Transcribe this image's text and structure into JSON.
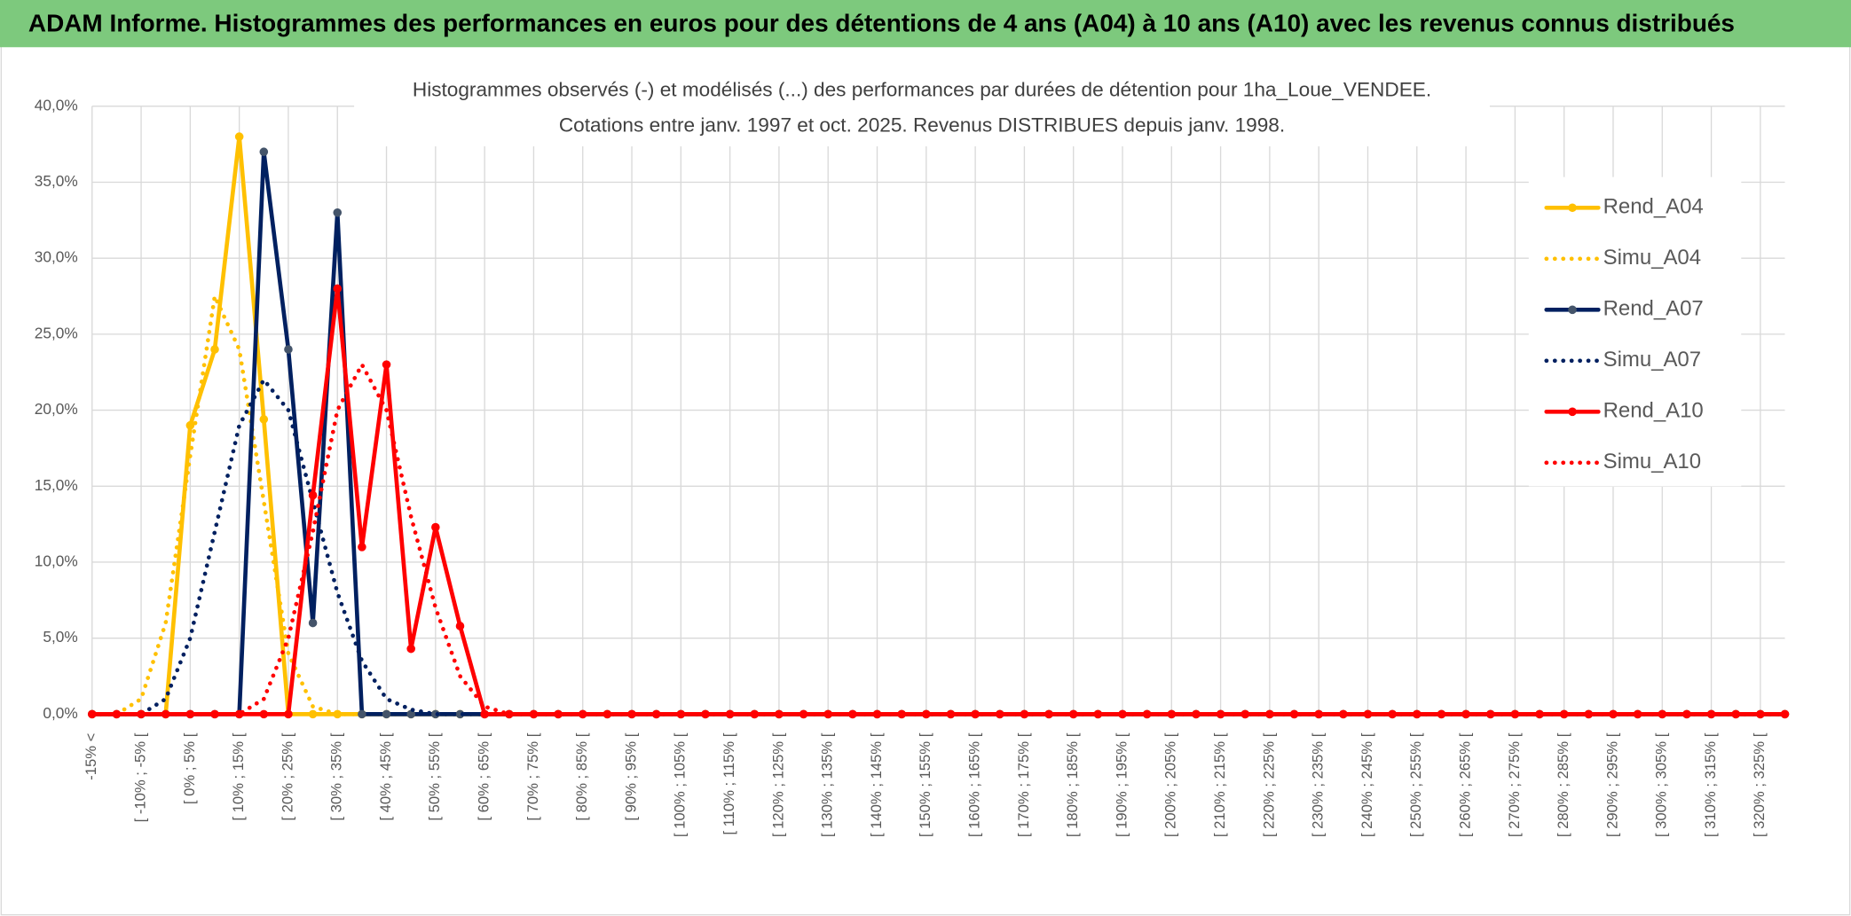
{
  "header": {
    "title": "ADAM Informe. Histogrammes des performances en euros pour des détentions de 4 ans (A04) à 10 ans (A10) avec les revenus connus distribués"
  },
  "chart_data": {
    "type": "line",
    "title": [
      "Histogrammes observés (-) et modélisés (...) des performances par durées de détention pour 1ha_Loue_VENDEE.",
      "Cotations entre janv. 1997 et oct. 2025. Revenus DISTRIBUES depuis janv. 1998."
    ],
    "categories": [
      "-15% <",
      null,
      "[ -10% ; -5% [",
      null,
      "[ 0% ; 5% [",
      null,
      "[ 10% ; 15% [",
      null,
      "[ 20% ; 25% [",
      null,
      "[ 30% ; 35% [",
      null,
      "[ 40% ; 45% [",
      null,
      "[ 50% ; 55% [",
      null,
      "[ 60% ; 65% [",
      null,
      "[ 70% ; 75% [",
      null,
      "[ 80% ; 85% [",
      null,
      "[ 90% ; 95% [",
      null,
      "[ 100% ; 105% [",
      null,
      "[ 110% ; 115% [",
      null,
      "[ 120% ; 125% [",
      null,
      "[ 130% ; 135% [",
      null,
      "[ 140% ; 145% [",
      null,
      "[ 150% ; 155% [",
      null,
      "[ 160% ; 165% [",
      null,
      "[ 170% ; 175% [",
      null,
      "[ 180% ; 185% [",
      null,
      "[ 190% ; 195% [",
      null,
      "[ 200% ; 205% [",
      null,
      "[ 210% ; 215% [",
      null,
      "[ 220% ; 225% [",
      null,
      "[ 230% ; 235% [",
      null,
      "[ 240% ; 245% [",
      null,
      "[ 250% ; 255% [",
      null,
      "[ 260% ; 265% [",
      null,
      "[ 270% ; 275% [",
      null,
      "[ 280% ; 285% [",
      null,
      "[ 290% ; 295% [",
      null,
      "[ 300% ; 305% [",
      null,
      "[ 310% ; 315% [",
      null,
      "[ 320% ; 325% [",
      null
    ],
    "series": [
      {
        "name": "Rend_A04",
        "color": "#ffc000",
        "style": "solid",
        "marker": true,
        "values": [
          0,
          0,
          0,
          0,
          19,
          24,
          38,
          19.4,
          0,
          0,
          0,
          0,
          0,
          0,
          0,
          0,
          0,
          0,
          0,
          0,
          0,
          0,
          0,
          0,
          0,
          0,
          0,
          0,
          0,
          0,
          0,
          0,
          0,
          0,
          0,
          0,
          0,
          0,
          0,
          0,
          0,
          0,
          0,
          0,
          0,
          0,
          0,
          0,
          0,
          0,
          0,
          0,
          0,
          0,
          0,
          0,
          0,
          0,
          0,
          0,
          0,
          0,
          0,
          0,
          0,
          0,
          0,
          0,
          0,
          0
        ]
      },
      {
        "name": "Simu_A04",
        "color": "#ffc000",
        "style": "dotted",
        "marker": false,
        "values": [
          0,
          0,
          1,
          6,
          17,
          27.5,
          24,
          14,
          4,
          0.5,
          0,
          0,
          0,
          0,
          0,
          0,
          0,
          0,
          0,
          0,
          0,
          0,
          0,
          0,
          0,
          0,
          0,
          0,
          0,
          0,
          0,
          0,
          0,
          0,
          0,
          0,
          0,
          0,
          0,
          0,
          0,
          0,
          0,
          0,
          0,
          0,
          0,
          0,
          0,
          0,
          0,
          0,
          0,
          0,
          0,
          0,
          0,
          0,
          0,
          0,
          0,
          0,
          0,
          0,
          0,
          0,
          0,
          0,
          0,
          0
        ]
      },
      {
        "name": "Rend_A07",
        "color": "#002060",
        "marker_color": "#44546a",
        "style": "solid",
        "marker": true,
        "values": [
          0,
          0,
          0,
          0,
          0,
          0,
          0,
          37,
          24,
          6,
          33,
          0,
          0,
          0,
          0,
          0,
          0,
          0,
          0,
          0,
          0,
          0,
          0,
          0,
          0,
          0,
          0,
          0,
          0,
          0,
          0,
          0,
          0,
          0,
          0,
          0,
          0,
          0,
          0,
          0,
          0,
          0,
          0,
          0,
          0,
          0,
          0,
          0,
          0,
          0,
          0,
          0,
          0,
          0,
          0,
          0,
          0,
          0,
          0,
          0,
          0,
          0,
          0,
          0,
          0,
          0,
          0,
          0,
          0,
          0
        ]
      },
      {
        "name": "Simu_A07",
        "color": "#002060",
        "style": "dotted",
        "marker": false,
        "values": [
          0,
          0,
          0,
          1,
          5,
          12,
          19,
          22,
          20,
          14,
          8,
          3.5,
          1,
          0.3,
          0,
          0,
          0,
          0,
          0,
          0,
          0,
          0,
          0,
          0,
          0,
          0,
          0,
          0,
          0,
          0,
          0,
          0,
          0,
          0,
          0,
          0,
          0,
          0,
          0,
          0,
          0,
          0,
          0,
          0,
          0,
          0,
          0,
          0,
          0,
          0,
          0,
          0,
          0,
          0,
          0,
          0,
          0,
          0,
          0,
          0,
          0,
          0,
          0,
          0,
          0,
          0,
          0,
          0,
          0,
          0
        ]
      },
      {
        "name": "Rend_A10",
        "color": "#ff0000",
        "style": "solid",
        "marker": true,
        "values": [
          0,
          0,
          0,
          0,
          0,
          0,
          0,
          0,
          0,
          14.4,
          28,
          11,
          23,
          4.3,
          12.3,
          5.8,
          0,
          0,
          0,
          0,
          0,
          0,
          0,
          0,
          0,
          0,
          0,
          0,
          0,
          0,
          0,
          0,
          0,
          0,
          0,
          0,
          0,
          0,
          0,
          0,
          0,
          0,
          0,
          0,
          0,
          0,
          0,
          0,
          0,
          0,
          0,
          0,
          0,
          0,
          0,
          0,
          0,
          0,
          0,
          0,
          0,
          0,
          0,
          0,
          0,
          0,
          0,
          0,
          0,
          0
        ]
      },
      {
        "name": "Simu_A10",
        "color": "#ff0000",
        "style": "dotted",
        "marker": false,
        "values": [
          0,
          0,
          0,
          0,
          0,
          0,
          0,
          1,
          5,
          12,
          20,
          23,
          20,
          13,
          7,
          2.5,
          0.5,
          0,
          0,
          0,
          0,
          0,
          0,
          0,
          0,
          0,
          0,
          0,
          0,
          0,
          0,
          0,
          0,
          0,
          0,
          0,
          0,
          0,
          0,
          0,
          0,
          0,
          0,
          0,
          0,
          0,
          0,
          0,
          0,
          0,
          0,
          0,
          0,
          0,
          0,
          0,
          0,
          0,
          0,
          0,
          0,
          0,
          0,
          0,
          0,
          0,
          0,
          0,
          0,
          0
        ]
      }
    ],
    "ylim": [
      0,
      40
    ],
    "yticks": [
      {
        "value": 0,
        "label": "0,0%"
      },
      {
        "value": 5,
        "label": "5,0%"
      },
      {
        "value": 10,
        "label": "10,0%"
      },
      {
        "value": 15,
        "label": "15,0%"
      },
      {
        "value": 20,
        "label": "20,0%"
      },
      {
        "value": 25,
        "label": "25,0%"
      },
      {
        "value": 30,
        "label": "30,0%"
      },
      {
        "value": 35,
        "label": "35,0%"
      },
      {
        "value": 40,
        "label": "40,0%"
      }
    ],
    "grid": true,
    "legend": "right"
  }
}
